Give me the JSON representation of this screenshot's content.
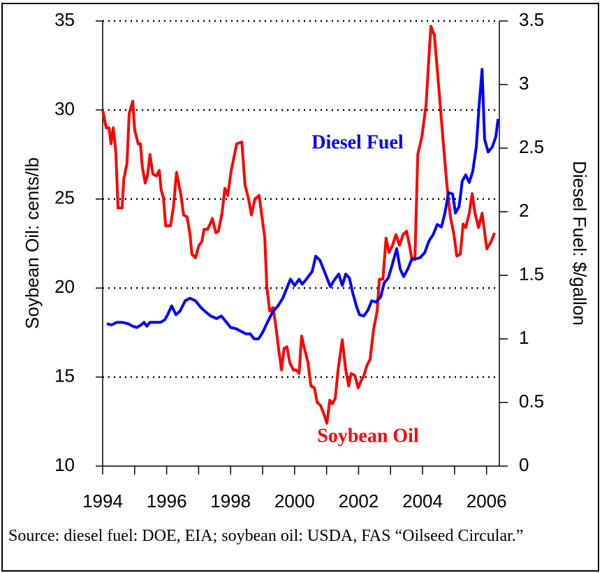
{
  "chart_data": {
    "type": "line",
    "y_label": "Soybean Oil: cents/lb",
    "y2_label": "Diesel Fuel: $/gallon",
    "annotations": [
      "Diesel Fuel",
      "Soybean Oil"
    ],
    "source": "Source: diesel fuel: DOE, EIA; soybean oil: USDA, FAS “Oilseed Circular.”",
    "xlim": [
      1994,
      2006.4
    ],
    "xticks": [
      1994,
      1996,
      1998,
      2000,
      2002,
      2004,
      2006
    ],
    "xminorticks": [
      1995,
      1997,
      1999,
      2001,
      2003,
      2005
    ],
    "ylim": [
      10,
      35
    ],
    "yticks": [
      10,
      15,
      20,
      25,
      30,
      35
    ],
    "y2lim": [
      0,
      3.5
    ],
    "y2ticks": [
      0,
      0.5,
      1,
      1.5,
      2,
      2.5,
      3,
      3.5
    ],
    "grid": true,
    "series": [
      {
        "name": "Soybean Oil",
        "color": "#ff0000",
        "x": [
          1994.0,
          1994.11,
          1994.2,
          1994.26,
          1994.33,
          1994.41,
          1994.48,
          1994.61,
          1994.66,
          1994.76,
          1994.83,
          1994.94,
          1995.0,
          1995.11,
          1995.18,
          1995.24,
          1995.33,
          1995.4,
          1995.48,
          1995.57,
          1995.68,
          1995.77,
          1995.83,
          1995.9,
          1995.97,
          1996.12,
          1996.21,
          1996.31,
          1996.45,
          1996.53,
          1996.64,
          1996.73,
          1996.79,
          1996.9,
          1997.01,
          1997.1,
          1997.17,
          1997.28,
          1997.36,
          1997.43,
          1997.54,
          1997.62,
          1997.73,
          1997.82,
          1997.91,
          1998.02,
          1998.19,
          1998.35,
          1998.45,
          1998.56,
          1998.65,
          1998.76,
          1998.89,
          1998.98,
          1999.07,
          1999.13,
          1999.22,
          1999.33,
          1999.41,
          1999.5,
          1999.59,
          1999.67,
          1999.76,
          1999.85,
          1999.96,
          2000.05,
          2000.14,
          2000.22,
          2000.31,
          2000.42,
          2000.51,
          2000.62,
          2000.7,
          2000.81,
          2000.9,
          2001.01,
          2001.1,
          2001.18,
          2001.27,
          2001.36,
          2001.49,
          2001.6,
          2001.69,
          2001.77,
          2001.88,
          2001.99,
          2002.08,
          2002.17,
          2002.25,
          2002.36,
          2002.47,
          2002.58,
          2002.65,
          2002.76,
          2002.86,
          2002.95,
          2003.06,
          2003.17,
          2003.28,
          2003.39,
          2003.5,
          2003.59,
          2003.67,
          2003.76,
          2003.85,
          2003.98,
          2004.11,
          2004.2,
          2004.26,
          2004.37,
          2004.46,
          2004.55,
          2004.66,
          2004.76,
          2004.87,
          2004.98,
          2005.07,
          2005.18,
          2005.27,
          2005.35,
          2005.46,
          2005.55,
          2005.64,
          2005.75,
          2005.86,
          2006.01,
          2006.14,
          2006.25
        ],
        "values": [
          30.0,
          29.0,
          29.0,
          28.1,
          29.0,
          27.7,
          24.5,
          24.5,
          26.1,
          27.0,
          29.8,
          30.5,
          28.9,
          28.1,
          28.1,
          26.8,
          25.9,
          26.3,
          27.5,
          26.4,
          26.3,
          26.6,
          25.5,
          25.1,
          23.5,
          23.5,
          24.5,
          26.5,
          25.2,
          24.1,
          24.0,
          23.0,
          21.9,
          21.7,
          22.4,
          22.6,
          23.3,
          23.3,
          23.6,
          23.9,
          23.1,
          23.2,
          24.2,
          25.6,
          25.2,
          26.6,
          28.1,
          28.2,
          25.8,
          25.0,
          24.1,
          25.0,
          25.2,
          24.0,
          22.8,
          20.1,
          18.7,
          18.9,
          17.9,
          16.6,
          15.4,
          16.6,
          16.7,
          15.8,
          15.4,
          15.4,
          15.2,
          17.3,
          16.6,
          15.8,
          14.5,
          14.4,
          13.6,
          13.4,
          13.0,
          12.4,
          13.7,
          13.5,
          13.8,
          15.4,
          17.1,
          15.4,
          14.5,
          15.2,
          15.1,
          14.4,
          14.8,
          15.1,
          15.6,
          16.0,
          17.7,
          18.7,
          20.5,
          20.5,
          22.8,
          22.0,
          22.4,
          23.0,
          22.4,
          23.0,
          23.2,
          22.4,
          21.6,
          21.6,
          27.5,
          28.5,
          30.3,
          33.0,
          34.7,
          34.2,
          32.3,
          30.3,
          27.9,
          25.8,
          24.0,
          23.0,
          21.8,
          21.9,
          23.6,
          23.4,
          24.2,
          25.3,
          24.2,
          23.4,
          24.2,
          22.2,
          22.6,
          23.1
        ]
      },
      {
        "name": "Diesel Fuel",
        "color": "#0000ff",
        "axis": "y2",
        "x": [
          1994.13,
          1994.28,
          1994.44,
          1994.61,
          1994.79,
          1994.94,
          1995.07,
          1995.2,
          1995.29,
          1995.38,
          1995.48,
          1995.64,
          1995.81,
          1995.94,
          1996.03,
          1996.16,
          1996.29,
          1996.42,
          1996.58,
          1996.73,
          1996.9,
          1997.06,
          1997.23,
          1997.38,
          1997.56,
          1997.71,
          1997.84,
          1998.0,
          1998.17,
          1998.32,
          1998.48,
          1998.61,
          1998.74,
          1998.87,
          1999.0,
          1999.15,
          1999.31,
          1999.48,
          1999.63,
          1999.76,
          1999.87,
          2000.0,
          2000.14,
          2000.24,
          2000.4,
          2000.55,
          2000.66,
          2000.79,
          2000.9,
          2001.01,
          2001.12,
          2001.23,
          2001.38,
          2001.49,
          2001.6,
          2001.71,
          2001.82,
          2001.93,
          2002.03,
          2002.17,
          2002.3,
          2002.41,
          2002.54,
          2002.69,
          2002.8,
          2002.93,
          2003.06,
          2003.19,
          2003.3,
          2003.41,
          2003.54,
          2003.67,
          2003.8,
          2003.93,
          2004.07,
          2004.2,
          2004.33,
          2004.46,
          2004.59,
          2004.7,
          2004.81,
          2004.94,
          2005.03,
          2005.14,
          2005.24,
          2005.35,
          2005.46,
          2005.57,
          2005.68,
          2005.77,
          2005.86,
          2005.94,
          2006.05,
          2006.18,
          2006.29,
          2006.36
        ],
        "values": [
          1.12,
          1.11,
          1.13,
          1.13,
          1.12,
          1.1,
          1.09,
          1.11,
          1.13,
          1.1,
          1.13,
          1.13,
          1.13,
          1.15,
          1.19,
          1.26,
          1.19,
          1.22,
          1.3,
          1.32,
          1.3,
          1.25,
          1.21,
          1.18,
          1.16,
          1.18,
          1.14,
          1.09,
          1.08,
          1.06,
          1.04,
          1.04,
          1.0,
          1.0,
          1.05,
          1.13,
          1.21,
          1.26,
          1.32,
          1.4,
          1.47,
          1.42,
          1.47,
          1.43,
          1.48,
          1.53,
          1.65,
          1.62,
          1.55,
          1.48,
          1.41,
          1.46,
          1.51,
          1.42,
          1.51,
          1.48,
          1.36,
          1.26,
          1.19,
          1.18,
          1.23,
          1.3,
          1.29,
          1.33,
          1.44,
          1.48,
          1.59,
          1.71,
          1.55,
          1.49,
          1.55,
          1.63,
          1.63,
          1.64,
          1.68,
          1.77,
          1.82,
          1.9,
          1.88,
          1.99,
          2.15,
          2.14,
          1.99,
          2.04,
          2.24,
          2.29,
          2.23,
          2.32,
          2.51,
          2.84,
          3.12,
          2.57,
          2.47,
          2.51,
          2.59,
          2.73
        ]
      }
    ]
  }
}
